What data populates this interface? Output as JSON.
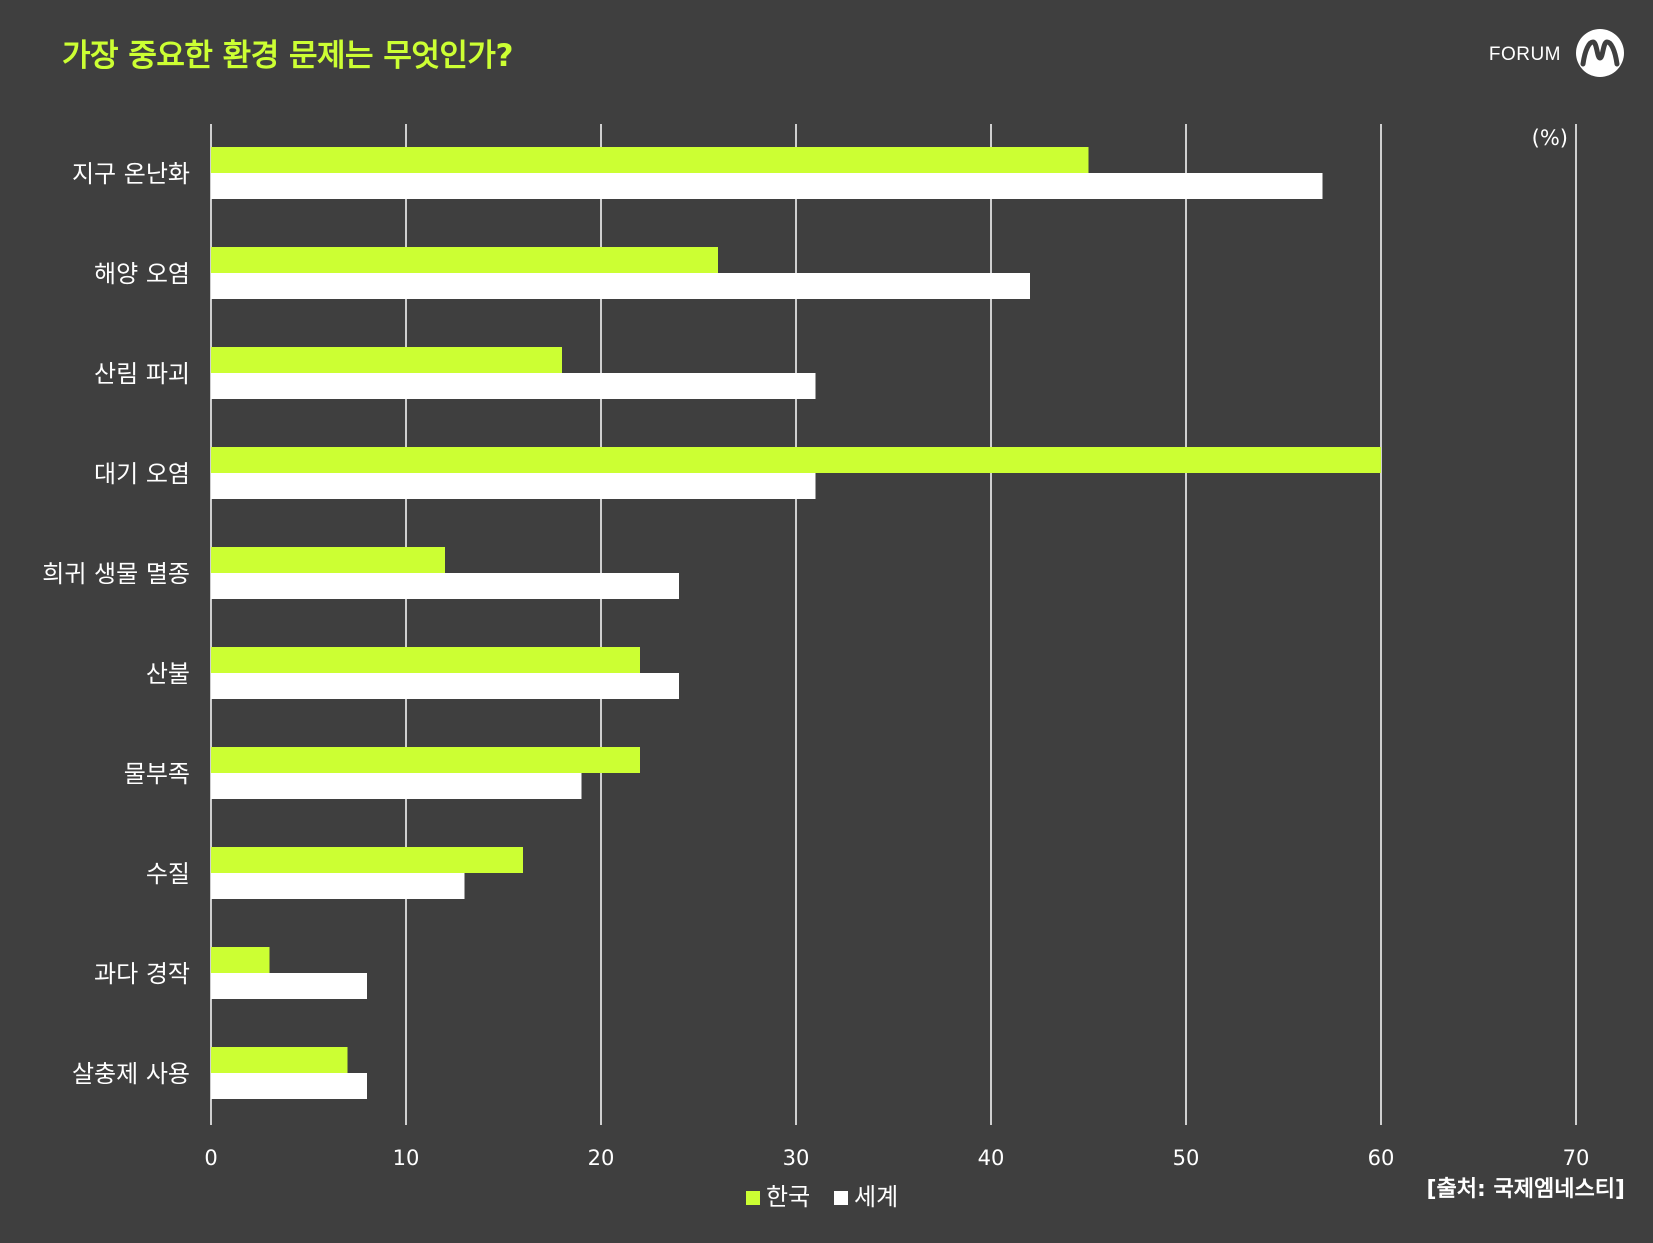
{
  "header": {
    "title": "가장 중요한 환경 문제는 무엇인가?",
    "brand": "FORUM",
    "brand_icon": "forum-m-logo-icon"
  },
  "source": "[출처: 국제엠네스티]",
  "colors": {
    "background": "#3f3f3f",
    "korea": "#ccff33",
    "world": "#ffffff",
    "title": "#ccff33"
  },
  "chart_data": {
    "type": "bar",
    "orientation": "horizontal",
    "unit_label": "(%)",
    "categories": [
      "지구 온난화",
      "해양 오염",
      "산림 파괴",
      "대기 오염",
      "희귀 생물 멸종",
      "산불",
      "물부족",
      "수질",
      "과다 경작",
      "살충제 사용"
    ],
    "series": [
      {
        "name": "한국",
        "color": "#ccff33",
        "values": [
          45,
          26,
          18,
          60,
          12,
          22,
          22,
          16,
          3,
          7
        ]
      },
      {
        "name": "세계",
        "color": "#ffffff",
        "values": [
          57,
          42,
          31,
          31,
          24,
          24,
          19,
          13,
          8,
          8
        ]
      }
    ],
    "xlim": [
      0,
      70
    ],
    "ticks": [
      0,
      10,
      20,
      30,
      40,
      50,
      60,
      70
    ],
    "tick_labels": [
      "0",
      "10",
      "20",
      "30",
      "40",
      "50",
      "60",
      "70"
    ],
    "grid": true,
    "legend_position": "bottom-center"
  }
}
